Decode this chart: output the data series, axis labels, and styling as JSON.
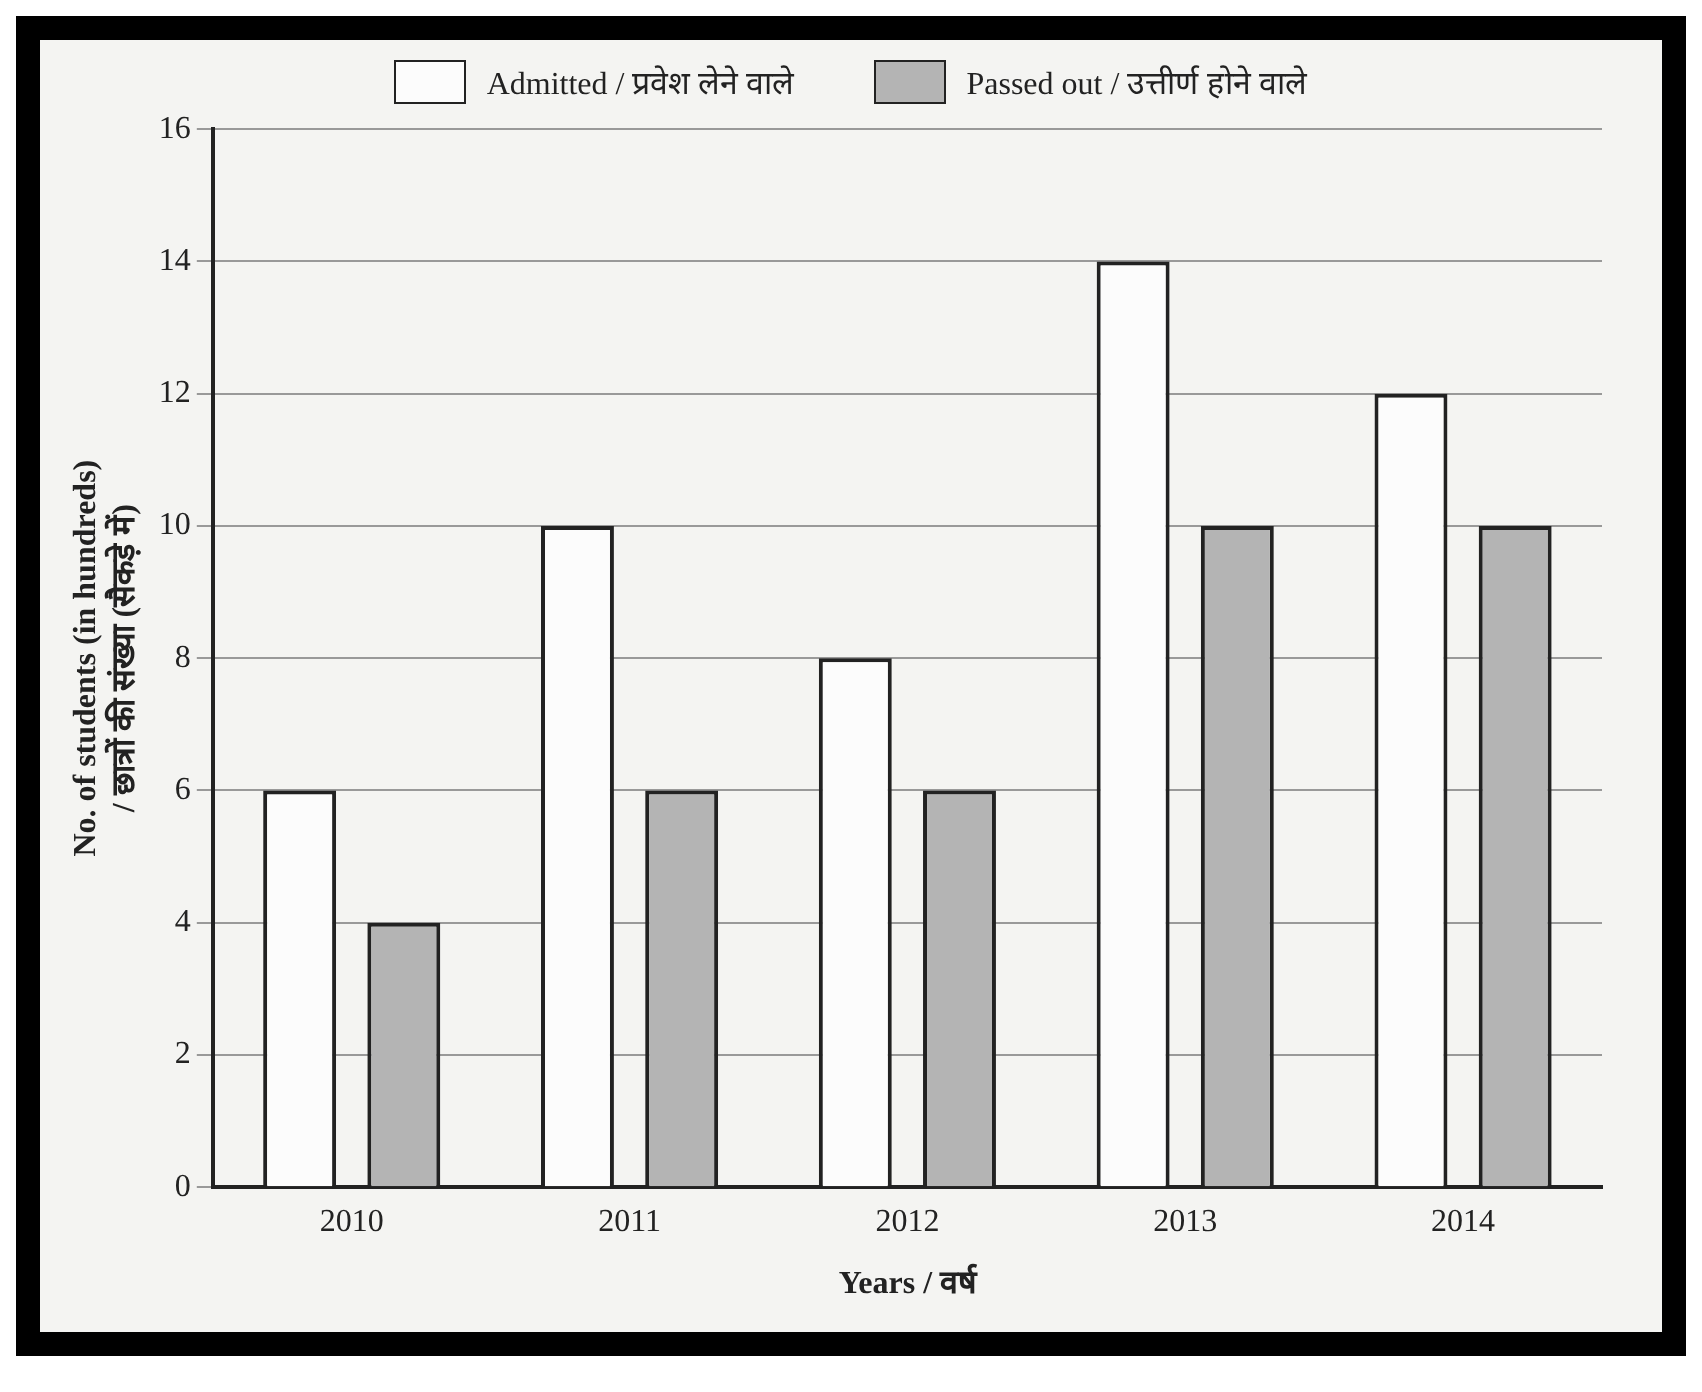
{
  "chart_data": {
    "type": "bar",
    "categories": [
      "2010",
      "2011",
      "2012",
      "2013",
      "2014"
    ],
    "series": [
      {
        "name": "Admitted / प्रवेश लेने वाले",
        "color": "#fcfcfc",
        "values": [
          6,
          10,
          8,
          14,
          12
        ]
      },
      {
        "name": "Passed out / उत्तीर्ण होने वाले",
        "color": "#b4b4b4",
        "values": [
          4,
          6,
          6,
          10,
          10
        ]
      }
    ],
    "xlabel": "Years / वर्ष",
    "ylabel": "No. of students (in hundreds) / छात्रों की संख्या (सैकड़े में)",
    "ylim": [
      0,
      16
    ],
    "yticks": [
      0,
      2,
      4,
      6,
      8,
      10,
      12,
      14,
      16
    ],
    "grid": "y",
    "legend": "top"
  }
}
